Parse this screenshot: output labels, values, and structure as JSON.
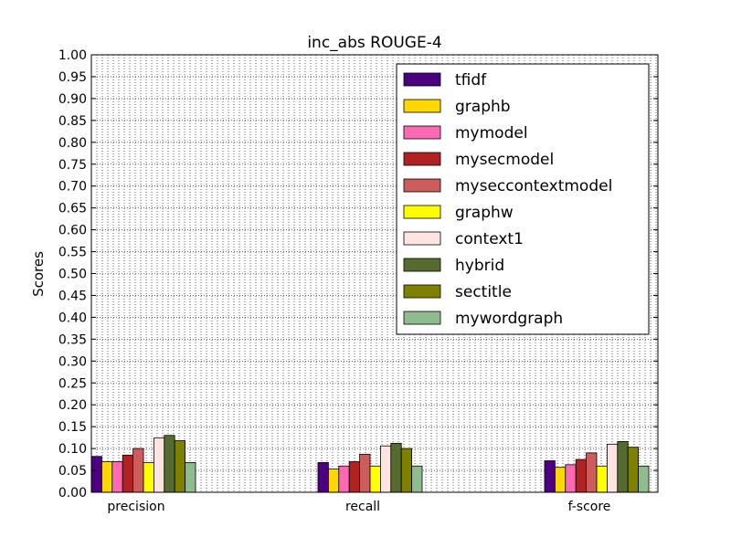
{
  "chart_data": {
    "type": "bar",
    "title": "inc_abs ROUGE-4",
    "xlabel": "",
    "ylabel": "Scores",
    "ylim": [
      0,
      1.0
    ],
    "ytick_step": 0.05,
    "grid": true,
    "legend_position": "top-right",
    "categories": [
      "precision",
      "recall",
      "f-score"
    ],
    "series": [
      {
        "name": "tfidf",
        "color": "#4b0082",
        "values": [
          0.082,
          0.068,
          0.072
        ]
      },
      {
        "name": "graphb",
        "color": "#ffd700",
        "values": [
          0.07,
          0.053,
          0.057
        ]
      },
      {
        "name": "mymodel",
        "color": "#ff69b4",
        "values": [
          0.07,
          0.06,
          0.063
        ]
      },
      {
        "name": "mysecmodel",
        "color": "#b22222",
        "values": [
          0.085,
          0.07,
          0.075
        ]
      },
      {
        "name": "myseccontextmodel",
        "color": "#cd5c5c",
        "values": [
          0.1,
          0.087,
          0.09
        ]
      },
      {
        "name": "graphw",
        "color": "#ffff00",
        "values": [
          0.068,
          0.06,
          0.06
        ]
      },
      {
        "name": "context1",
        "color": "#ffe4e1",
        "values": [
          0.124,
          0.106,
          0.11
        ]
      },
      {
        "name": "hybrid",
        "color": "#556b2f",
        "values": [
          0.13,
          0.112,
          0.116
        ]
      },
      {
        "name": "sectitle",
        "color": "#808000",
        "values": [
          0.118,
          0.1,
          0.103
        ]
      },
      {
        "name": "mywordgraph",
        "color": "#8fbc8f",
        "values": [
          0.068,
          0.06,
          0.06
        ]
      }
    ]
  }
}
